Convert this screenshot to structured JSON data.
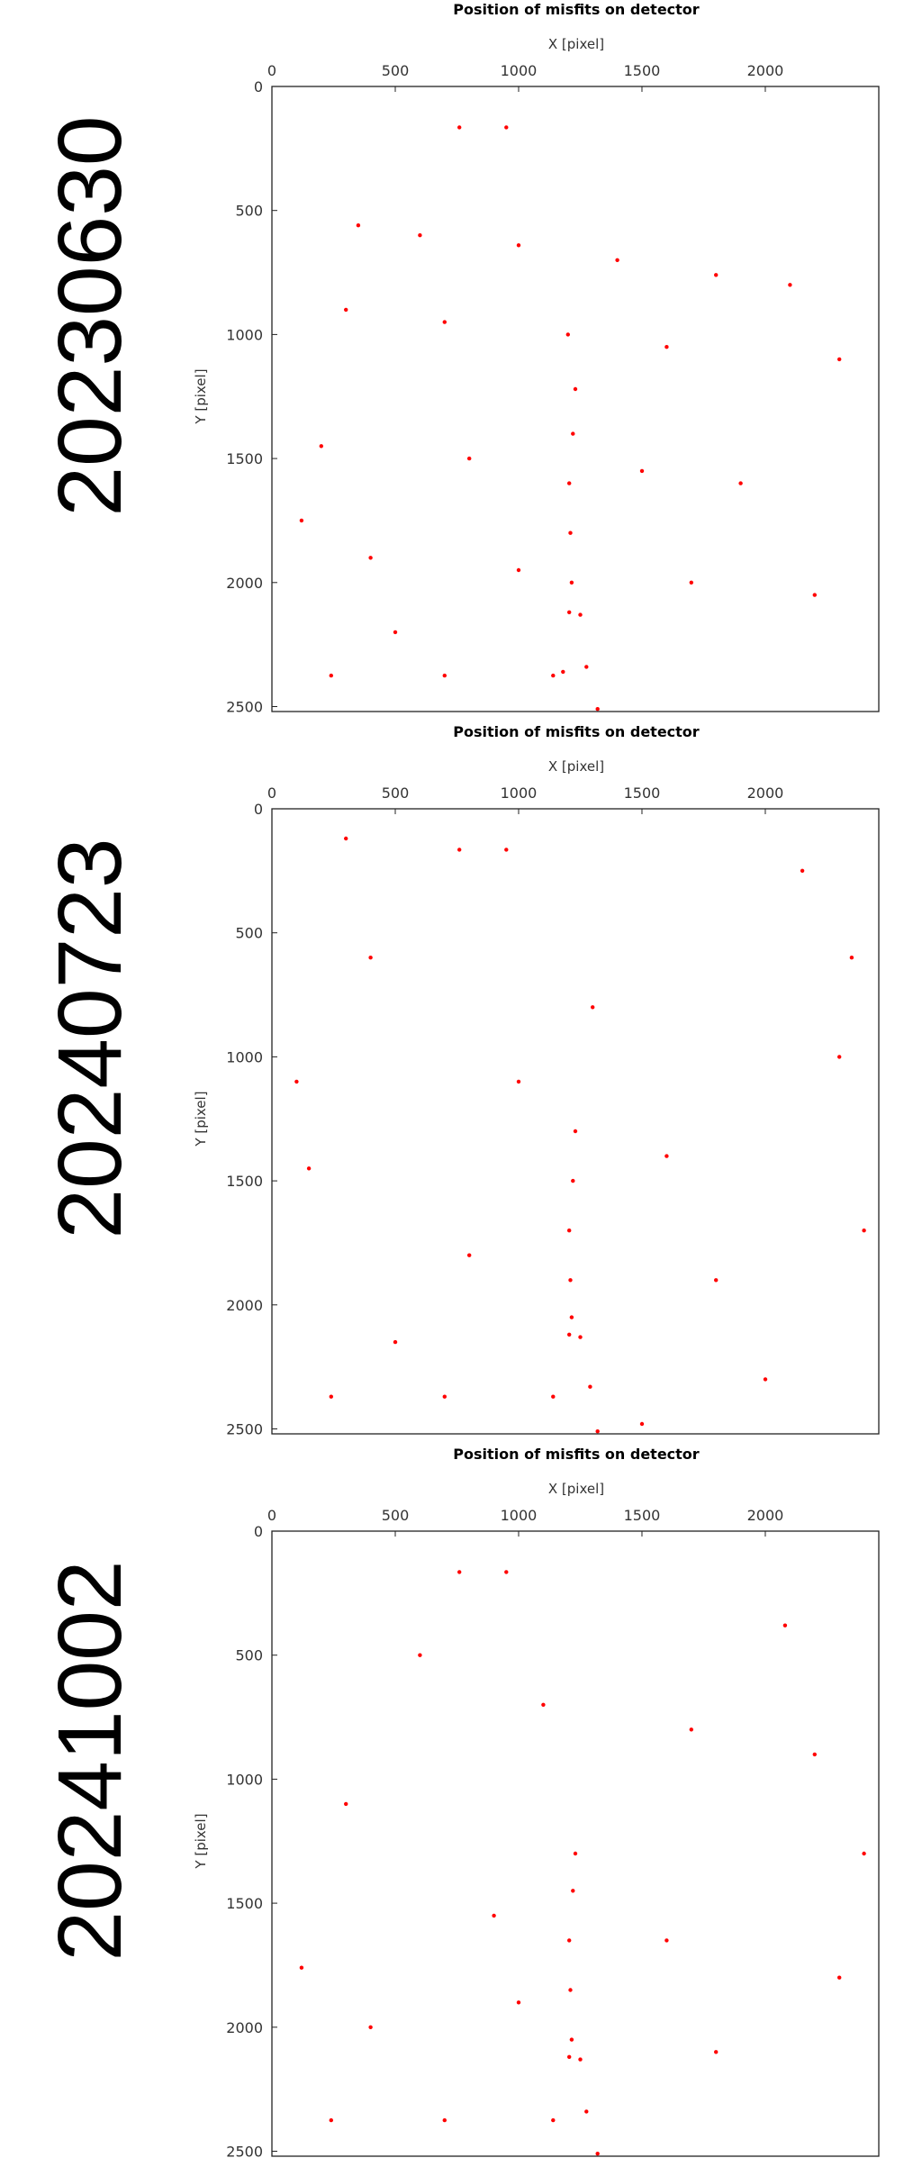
{
  "panels": [
    {
      "label": "20230630",
      "chart_data": {
        "type": "scatter",
        "title": "Position of misfits on detector",
        "xlabel": "X [pixel]",
        "ylabel": "Y [pixel]",
        "xlim": [
          0,
          2460
        ],
        "ylim": [
          0,
          2520
        ],
        "y_inverted": true,
        "x_axis_position": "top",
        "xticks": [
          0,
          500,
          1000,
          1500,
          2000
        ],
        "yticks": [
          0,
          500,
          1000,
          1500,
          2000,
          2500
        ],
        "grid": false,
        "marker_color": "#ff0000",
        "series": [
          {
            "points": [
              [
                1230,
                1220
              ],
              [
                1220,
                1400
              ],
              [
                1205,
                1600
              ],
              [
                1210,
                1800
              ],
              [
                1215,
                2000
              ],
              [
                1205,
                2120
              ],
              [
                1250,
                2130
              ],
              [
                1275,
                2340
              ],
              [
                1320,
                2510
              ],
              [
                240,
                2375
              ],
              [
                700,
                2375
              ],
              [
                1140,
                2375
              ],
              [
                1180,
                2360
              ],
              [
                760,
                165
              ],
              [
                950,
                165
              ],
              [
                120,
                1750
              ],
              [
                350,
                560
              ],
              [
                600,
                600
              ],
              [
                1000,
                640
              ],
              [
                1400,
                700
              ],
              [
                1800,
                760
              ],
              [
                2100,
                800
              ],
              [
                300,
                900
              ],
              [
                700,
                950
              ],
              [
                1200,
                1000
              ],
              [
                1600,
                1050
              ],
              [
                2300,
                1100
              ],
              [
                200,
                1450
              ],
              [
                800,
                1500
              ],
              [
                1500,
                1550
              ],
              [
                1900,
                1600
              ],
              [
                400,
                1900
              ],
              [
                1000,
                1950
              ],
              [
                1700,
                2000
              ],
              [
                2200,
                2050
              ],
              [
                500,
                2200
              ]
            ]
          }
        ]
      }
    },
    {
      "label": "20240723",
      "chart_data": {
        "type": "scatter",
        "title": "Position of misfits on detector",
        "xlabel": "X [pixel]",
        "ylabel": "Y [pixel]",
        "xlim": [
          0,
          2460
        ],
        "ylim": [
          0,
          2520
        ],
        "y_inverted": true,
        "x_axis_position": "top",
        "xticks": [
          0,
          500,
          1000,
          1500,
          2000
        ],
        "yticks": [
          0,
          500,
          1000,
          1500,
          2000,
          2500
        ],
        "grid": false,
        "marker_color": "#ff0000",
        "series": [
          {
            "points": [
              [
                1230,
                1300
              ],
              [
                1220,
                1500
              ],
              [
                1205,
                1700
              ],
              [
                1210,
                1900
              ],
              [
                1215,
                2050
              ],
              [
                1205,
                2120
              ],
              [
                1250,
                2130
              ],
              [
                1290,
                2330
              ],
              [
                1320,
                2510
              ],
              [
                240,
                2370
              ],
              [
                700,
                2370
              ],
              [
                1140,
                2370
              ],
              [
                760,
                165
              ],
              [
                950,
                165
              ],
              [
                300,
                120
              ],
              [
                2150,
                250
              ],
              [
                100,
                1100
              ],
              [
                150,
                1450
              ],
              [
                1600,
                1400
              ],
              [
                1000,
                1100
              ],
              [
                1300,
                800
              ],
              [
                400,
                600
              ],
              [
                2300,
                1000
              ],
              [
                800,
                1800
              ],
              [
                1800,
                1900
              ],
              [
                500,
                2150
              ],
              [
                2000,
                2300
              ],
              [
                1500,
                2480
              ],
              [
                2400,
                1700
              ],
              [
                2350,
                600
              ]
            ]
          }
        ]
      }
    },
    {
      "label": "20241002",
      "chart_data": {
        "type": "scatter",
        "title": "Position of misfits on detector",
        "xlabel": "X [pixel]",
        "ylabel": "Y [pixel]",
        "xlim": [
          0,
          2460
        ],
        "ylim": [
          0,
          2520
        ],
        "y_inverted": true,
        "x_axis_position": "top",
        "xticks": [
          0,
          500,
          1000,
          1500,
          2000
        ],
        "yticks": [
          0,
          500,
          1000,
          1500,
          2000,
          2500
        ],
        "grid": false,
        "marker_color": "#ff0000",
        "series": [
          {
            "points": [
              [
                1230,
                1300
              ],
              [
                1220,
                1450
              ],
              [
                1205,
                1650
              ],
              [
                1210,
                1850
              ],
              [
                1215,
                2050
              ],
              [
                1205,
                2120
              ],
              [
                1250,
                2130
              ],
              [
                1275,
                2340
              ],
              [
                1320,
                2510
              ],
              [
                240,
                2375
              ],
              [
                700,
                2375
              ],
              [
                1140,
                2375
              ],
              [
                760,
                165
              ],
              [
                950,
                165
              ],
              [
                120,
                1760
              ],
              [
                2080,
                380
              ],
              [
                600,
                500
              ],
              [
                1100,
                700
              ],
              [
                1700,
                800
              ],
              [
                2200,
                900
              ],
              [
                300,
                1100
              ],
              [
                900,
                1550
              ],
              [
                1600,
                1650
              ],
              [
                2300,
                1800
              ],
              [
                400,
                2000
              ],
              [
                1000,
                1900
              ],
              [
                1800,
                2100
              ],
              [
                2400,
                1300
              ]
            ]
          }
        ]
      }
    }
  ]
}
